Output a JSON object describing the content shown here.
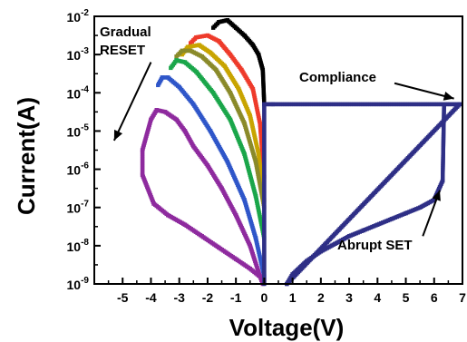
{
  "chart_data": {
    "type": "scatter",
    "xlabel": "Voltage(V)",
    "ylabel": "Current(A)",
    "xlim": [
      -6,
      7
    ],
    "ylim_log10": [
      -9,
      -2
    ],
    "y_scale": "log",
    "grid": false,
    "x_ticks": [
      {
        "value": -5,
        "label": "-5"
      },
      {
        "value": -4,
        "label": "-4"
      },
      {
        "value": -3,
        "label": "-3"
      },
      {
        "value": -2,
        "label": "-2"
      },
      {
        "value": -1,
        "label": "-1"
      },
      {
        "value": 0,
        "label": "0"
      },
      {
        "value": 1,
        "label": "1"
      },
      {
        "value": 2,
        "label": "2"
      },
      {
        "value": 3,
        "label": "3"
      },
      {
        "value": 4,
        "label": "4"
      },
      {
        "value": 5,
        "label": "5"
      },
      {
        "value": 6,
        "label": "6"
      },
      {
        "value": 7,
        "label": "7"
      }
    ],
    "y_ticks": [
      {
        "exp": -2,
        "base": "10",
        "power": "-2"
      },
      {
        "exp": -3,
        "base": "10",
        "power": "-3"
      },
      {
        "exp": -4,
        "base": "10",
        "power": "-4"
      },
      {
        "exp": -5,
        "base": "10",
        "power": "-5"
      },
      {
        "exp": -6,
        "base": "10",
        "power": "-6"
      },
      {
        "exp": -7,
        "base": "10",
        "power": "-7"
      },
      {
        "exp": -8,
        "base": "10",
        "power": "-8"
      },
      {
        "exp": -9,
        "base": "10",
        "power": "-9"
      }
    ],
    "series": [
      {
        "color": "#000000",
        "points": [
          [
            0,
            -4.3
          ],
          [
            -0.05,
            -3.4
          ],
          [
            -0.2,
            -3.0
          ],
          [
            -0.4,
            -2.75
          ],
          [
            -0.7,
            -2.5
          ],
          [
            -1.0,
            -2.3
          ],
          [
            -1.3,
            -2.1
          ],
          [
            -1.6,
            -2.15
          ],
          [
            -1.8,
            -2.3
          ]
        ]
      },
      {
        "color": "#ee3b2b",
        "points": [
          [
            0,
            -6.2
          ],
          [
            -0.15,
            -4.8
          ],
          [
            -0.4,
            -3.9
          ],
          [
            -0.8,
            -3.4
          ],
          [
            -1.2,
            -3.0
          ],
          [
            -1.6,
            -2.65
          ],
          [
            -2.0,
            -2.5
          ],
          [
            -2.4,
            -2.55
          ],
          [
            -2.6,
            -2.7
          ]
        ]
      },
      {
        "color": "#c8a400",
        "points": [
          [
            0,
            -6.8
          ],
          [
            -0.2,
            -5.6
          ],
          [
            -0.5,
            -4.6
          ],
          [
            -0.9,
            -3.9
          ],
          [
            -1.4,
            -3.3
          ],
          [
            -1.9,
            -2.95
          ],
          [
            -2.3,
            -2.75
          ],
          [
            -2.7,
            -2.8
          ],
          [
            -2.9,
            -3.0
          ]
        ]
      },
      {
        "color": "#8a8a2a",
        "points": [
          [
            0,
            -7.0
          ],
          [
            -0.3,
            -5.8
          ],
          [
            -0.7,
            -4.8
          ],
          [
            -1.2,
            -4.0
          ],
          [
            -1.7,
            -3.4
          ],
          [
            -2.2,
            -3.05
          ],
          [
            -2.6,
            -2.9
          ],
          [
            -2.9,
            -2.9
          ],
          [
            -3.1,
            -3.05
          ]
        ]
      },
      {
        "color": "#1aa64a",
        "points": [
          [
            0,
            -7.8
          ],
          [
            -0.3,
            -6.7
          ],
          [
            -0.7,
            -5.6
          ],
          [
            -1.2,
            -4.7
          ],
          [
            -1.8,
            -4.0
          ],
          [
            -2.4,
            -3.45
          ],
          [
            -2.8,
            -3.2
          ],
          [
            -3.1,
            -3.15
          ],
          [
            -3.3,
            -3.35
          ]
        ]
      },
      {
        "color": "#2f56c9",
        "points": [
          [
            0,
            -8.8
          ],
          [
            -0.3,
            -7.8
          ],
          [
            -0.7,
            -6.8
          ],
          [
            -1.3,
            -5.8
          ],
          [
            -1.9,
            -5.0
          ],
          [
            -2.5,
            -4.3
          ],
          [
            -3.0,
            -3.85
          ],
          [
            -3.4,
            -3.6
          ],
          [
            -3.6,
            -3.6
          ],
          [
            -3.75,
            -3.8
          ]
        ]
      },
      {
        "color": "#8e2a9e",
        "points": [
          [
            0,
            -8.9
          ],
          [
            -0.5,
            -8.6
          ],
          [
            -1.0,
            -8.35
          ],
          [
            -1.6,
            -8.05
          ],
          [
            -2.2,
            -7.75
          ],
          [
            -2.8,
            -7.45
          ],
          [
            -3.4,
            -7.2
          ],
          [
            -3.9,
            -6.9
          ],
          [
            -4.3,
            -6.15
          ],
          [
            -4.3,
            -5.5
          ],
          [
            -4.0,
            -4.7
          ],
          [
            -3.8,
            -4.45
          ],
          [
            -3.5,
            -4.5
          ],
          [
            -3.1,
            -4.7
          ],
          [
            -2.8,
            -5.0
          ],
          [
            -2.5,
            -5.4
          ],
          [
            -2.0,
            -5.9
          ],
          [
            -1.5,
            -6.5
          ],
          [
            -1.0,
            -7.2
          ],
          [
            -0.5,
            -8.0
          ],
          [
            -0.15,
            -8.8
          ],
          [
            -0.05,
            -9.0
          ]
        ]
      },
      {
        "color": "#2e2f86",
        "points": [
          [
            0,
            -9.0
          ],
          [
            0,
            -4.3
          ],
          [
            0.3,
            -4.3
          ],
          [
            6.9,
            -4.3
          ],
          [
            0.8,
            -9.0
          ],
          [
            1.0,
            -8.75
          ],
          [
            1.5,
            -8.4
          ],
          [
            2.0,
            -8.15
          ],
          [
            2.5,
            -7.95
          ],
          [
            3.0,
            -7.75
          ],
          [
            3.5,
            -7.6
          ],
          [
            4.0,
            -7.45
          ],
          [
            4.5,
            -7.3
          ],
          [
            5.0,
            -7.15
          ],
          [
            5.5,
            -7.0
          ],
          [
            6.0,
            -6.8
          ],
          [
            6.3,
            -6.3
          ],
          [
            6.35,
            -4.35
          ]
        ]
      }
    ],
    "annotations": [
      {
        "text": [
          "Gradual",
          "RESET"
        ]
      },
      {
        "text": [
          "Compliance"
        ]
      },
      {
        "text": [
          "Abrupt SET"
        ]
      }
    ]
  }
}
